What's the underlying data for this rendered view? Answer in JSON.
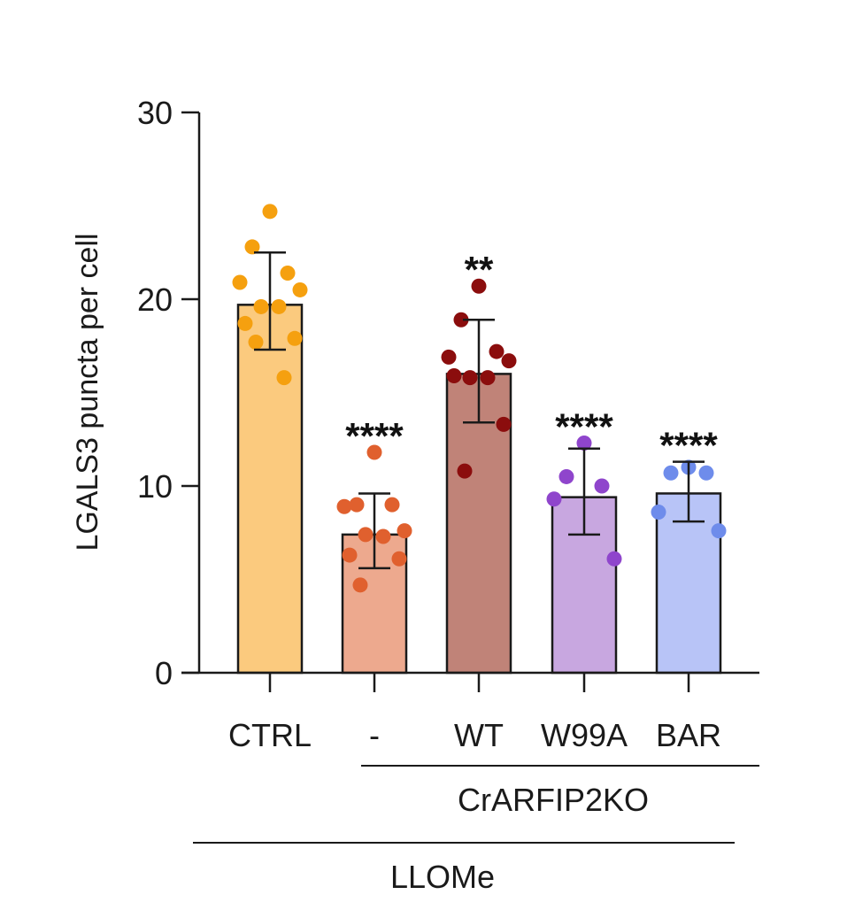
{
  "chart_data": {
    "type": "bar",
    "ylabel": "LGALS3 puncta per cell",
    "ylim": [
      0,
      30
    ],
    "yticks": [
      "0",
      "10",
      "20",
      "30"
    ],
    "categories": [
      "CTRL",
      "-",
      "WT",
      "W99A",
      "BAR"
    ],
    "bars": [
      {
        "category": "CTRL",
        "mean": 19.7,
        "sd_low": 17.3,
        "sd_high": 22.5,
        "significance": "",
        "fill": "#FBCA7E",
        "point_color": "#F5A00F",
        "points": [
          24.7,
          22.8,
          21.4,
          20.9,
          20.5,
          19.6,
          19.6,
          18.7,
          17.9,
          17.7,
          15.8
        ]
      },
      {
        "category": "-",
        "mean": 7.4,
        "sd_low": 5.6,
        "sd_high": 9.6,
        "significance": "****",
        "fill": "#EDA98E",
        "point_color": "#E0602E",
        "points": [
          11.8,
          9.0,
          9.0,
          8.9,
          7.6,
          7.4,
          7.3,
          6.3,
          6.1,
          4.7
        ]
      },
      {
        "category": "WT",
        "mean": 16.0,
        "sd_low": 13.4,
        "sd_high": 18.9,
        "significance": "**",
        "fill": "#C08378",
        "point_color": "#8B0D0D",
        "points": [
          20.7,
          18.9,
          17.2,
          16.9,
          16.7,
          15.8,
          15.8,
          15.9,
          13.3,
          10.8
        ]
      },
      {
        "category": "W99A",
        "mean": 9.4,
        "sd_low": 7.4,
        "sd_high": 12.0,
        "significance": "****",
        "fill": "#C8A7E0",
        "point_color": "#8F45CC",
        "points": [
          12.3,
          10.5,
          10.0,
          9.3,
          6.1
        ]
      },
      {
        "category": "BAR",
        "mean": 9.6,
        "sd_low": 8.1,
        "sd_high": 11.3,
        "significance": "****",
        "fill": "#B8C4F7",
        "point_color": "#6E8CEB",
        "points": [
          11.0,
          10.7,
          10.7,
          8.6,
          7.6
        ]
      }
    ],
    "group_labels": {
      "knockout": "CrARFIP2KO",
      "treatment": "LLOMe"
    },
    "grid": false,
    "legend": "none"
  }
}
